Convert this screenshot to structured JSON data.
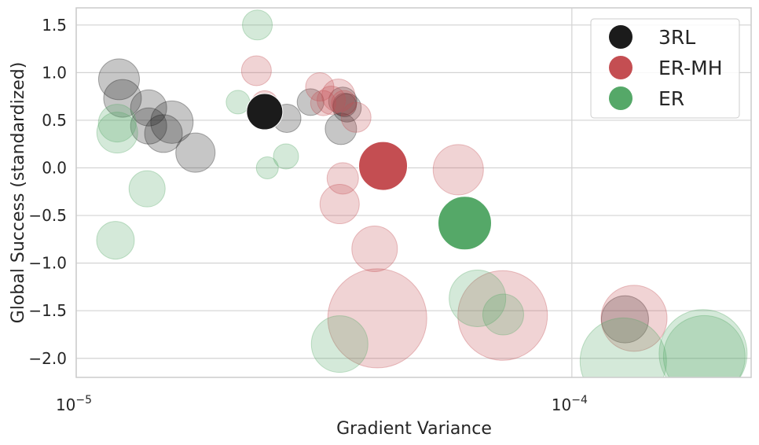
{
  "chart_data": {
    "type": "scatter",
    "xlabel": "Gradient Variance",
    "ylabel": "Global Success (standardized)",
    "xscale": "log",
    "xlim": [
      1e-05,
      0.00023
    ],
    "ylim": [
      -2.2,
      1.68
    ],
    "grid": true,
    "legend_position": "top-right",
    "x_ticks": [
      {
        "value": 1e-05,
        "base": "10",
        "exp": "−5"
      },
      {
        "value": 0.0001,
        "base": "10",
        "exp": "−4"
      }
    ],
    "y_ticks": [
      {
        "value": 1.5,
        "label": "1.5"
      },
      {
        "value": 1.0,
        "label": "1.0"
      },
      {
        "value": 0.5,
        "label": "0.5"
      },
      {
        "value": 0.0,
        "label": "0.0"
      },
      {
        "value": -0.5,
        "label": "−0.5"
      },
      {
        "value": -1.0,
        "label": "−1.0"
      },
      {
        "value": -1.5,
        "label": "−1.5"
      },
      {
        "value": -2.0,
        "label": "−2.0"
      }
    ],
    "series": [
      {
        "name": "3RL",
        "color": "#1b1b1b",
        "background_points": [
          {
            "x": 1.22e-05,
            "y": 0.93,
            "r": 26
          },
          {
            "x": 1.24e-05,
            "y": 0.73,
            "r": 24
          },
          {
            "x": 1.4e-05,
            "y": 0.63,
            "r": 23
          },
          {
            "x": 1.4e-05,
            "y": 0.44,
            "r": 23
          },
          {
            "x": 1.56e-05,
            "y": 0.48,
            "r": 27
          },
          {
            "x": 1.5e-05,
            "y": 0.36,
            "r": 24
          },
          {
            "x": 1.74e-05,
            "y": 0.16,
            "r": 25
          },
          {
            "x": 2.66e-05,
            "y": 0.52,
            "r": 18
          },
          {
            "x": 2.97e-05,
            "y": 0.69,
            "r": 17
          },
          {
            "x": 3.45e-05,
            "y": 0.7,
            "r": 18
          },
          {
            "x": 3.52e-05,
            "y": 0.63,
            "r": 18
          },
          {
            "x": 3.42e-05,
            "y": 0.41,
            "r": 20
          },
          {
            "x": 3.48e-05,
            "y": 0.66,
            "r": 15
          },
          {
            "x": 0.000128,
            "y": -1.59,
            "r": 30
          }
        ],
        "highlight": {
          "x": 2.4e-05,
          "y": 0.59,
          "r": 23
        }
      },
      {
        "name": "ER-MH",
        "color": "#c44e52",
        "background_points": [
          {
            "x": 2.31e-05,
            "y": 1.02,
            "r": 19
          },
          {
            "x": 2.4e-05,
            "y": 0.67,
            "r": 17
          },
          {
            "x": 2.38e-05,
            "y": 0.61,
            "r": 15
          },
          {
            "x": 3.1e-05,
            "y": 0.85,
            "r": 18
          },
          {
            "x": 3.15e-05,
            "y": 0.68,
            "r": 16
          },
          {
            "x": 3.27e-05,
            "y": 0.71,
            "r": 18
          },
          {
            "x": 3.38e-05,
            "y": 0.76,
            "r": 21
          },
          {
            "x": 3.47e-05,
            "y": 0.68,
            "r": 16
          },
          {
            "x": 3.67e-05,
            "y": 0.53,
            "r": 19
          },
          {
            "x": 3.45e-05,
            "y": -0.11,
            "r": 20
          },
          {
            "x": 3.4e-05,
            "y": -0.38,
            "r": 25
          },
          {
            "x": 4e-05,
            "y": -0.85,
            "r": 29
          },
          {
            "x": 4.05e-05,
            "y": -1.58,
            "r": 63
          },
          {
            "x": 5.9e-05,
            "y": -0.02,
            "r": 32
          },
          {
            "x": 7.25e-05,
            "y": -1.55,
            "r": 57
          },
          {
            "x": 0.0001335,
            "y": -1.58,
            "r": 42
          }
        ],
        "highlight": {
          "x": 4.16e-05,
          "y": 0.02,
          "r": 31
        }
      },
      {
        "name": "ER",
        "color": "#55a868",
        "background_points": [
          {
            "x": 2.32e-05,
            "y": 1.5,
            "r": 19
          },
          {
            "x": 2.12e-05,
            "y": 0.69,
            "r": 15
          },
          {
            "x": 2.43e-05,
            "y": 0.0,
            "r": 14
          },
          {
            "x": 2.65e-05,
            "y": 0.12,
            "r": 16
          },
          {
            "x": 1.21e-05,
            "y": 0.47,
            "r": 24
          },
          {
            "x": 1.21e-05,
            "y": 0.37,
            "r": 26
          },
          {
            "x": 1.39e-05,
            "y": -0.22,
            "r": 23
          },
          {
            "x": 1.2e-05,
            "y": -0.76,
            "r": 24
          },
          {
            "x": 3.4e-05,
            "y": -1.85,
            "r": 36
          },
          {
            "x": 6.45e-05,
            "y": -1.37,
            "r": 36
          },
          {
            "x": 7.27e-05,
            "y": -1.54,
            "r": 26
          },
          {
            "x": 0.000127,
            "y": -2.03,
            "r": 55
          },
          {
            "x": 0.000184,
            "y": -1.95,
            "r": 56
          },
          {
            "x": 0.000185,
            "y": -1.98,
            "r": 52
          }
        ],
        "highlight": {
          "x": 6.08e-05,
          "y": -0.58,
          "r": 34
        }
      }
    ]
  }
}
